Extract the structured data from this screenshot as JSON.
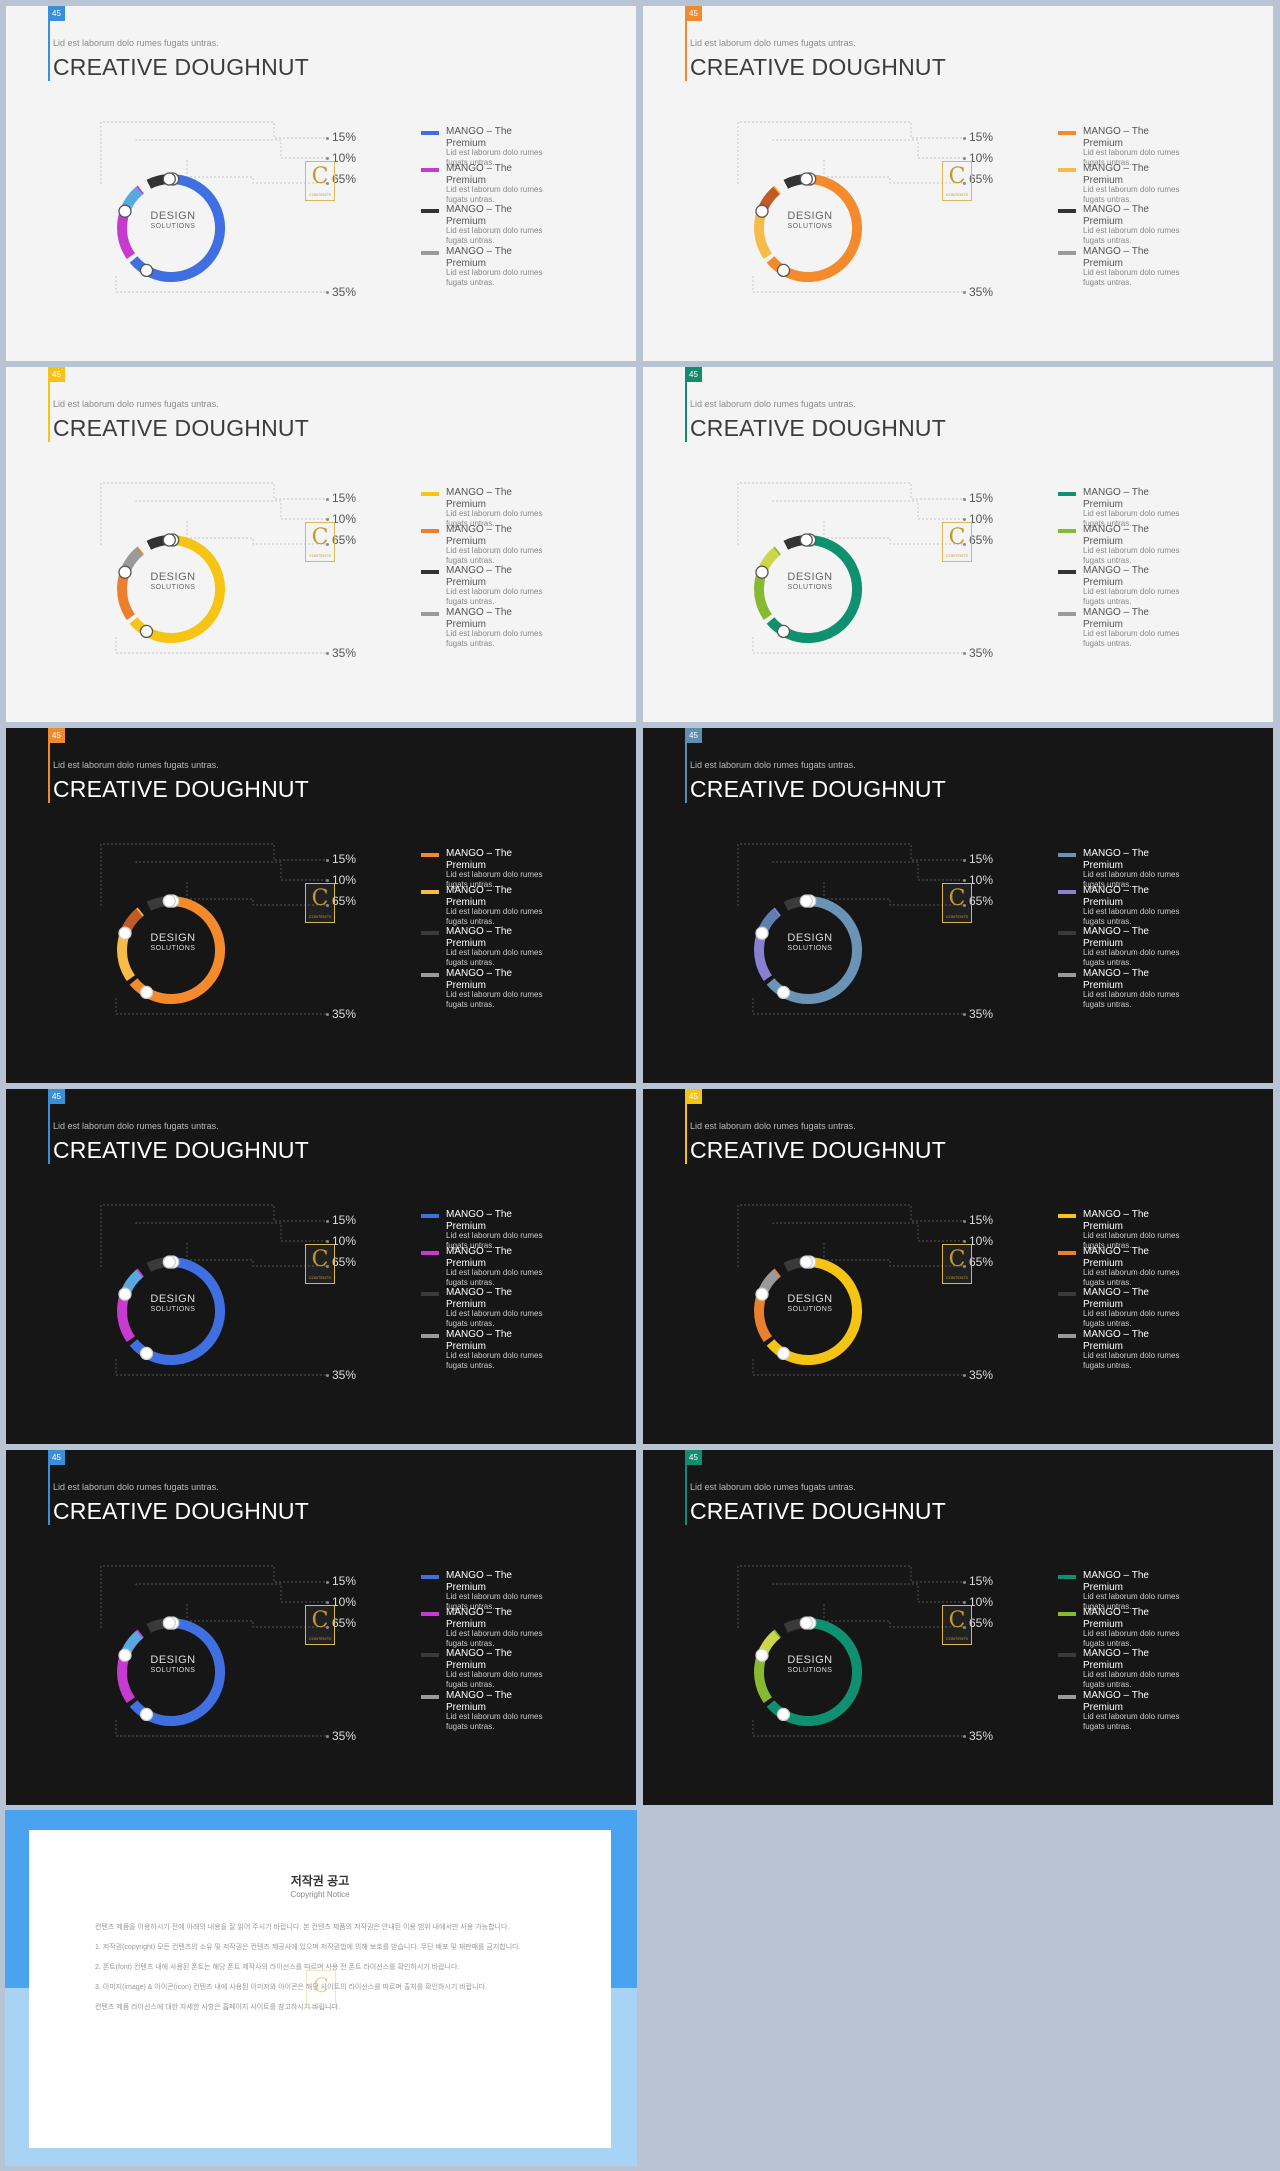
{
  "slides": [
    {
      "number": "45",
      "theme": "light",
      "accent": "#3b8fd9",
      "colors": [
        "#3f6fe0",
        "#c63ad0",
        "#333333",
        "#5aa8e0"
      ],
      "legend_colors": [
        "#3f6fe0",
        "#c63ad0",
        "#333333",
        "#9a9a9a"
      ]
    },
    {
      "number": "45",
      "theme": "light",
      "accent": "#f08a2e",
      "colors": [
        "#f58a2c",
        "#f7bb48",
        "#333333",
        "#c05a26"
      ],
      "legend_colors": [
        "#f58a2c",
        "#f7bb48",
        "#333333",
        "#9a9a9a"
      ]
    },
    {
      "number": "45",
      "theme": "light",
      "accent": "#f3c319",
      "colors": [
        "#f6c414",
        "#ea7f2d",
        "#333333",
        "#9a9a9a"
      ],
      "legend_colors": [
        "#f6c414",
        "#ea7f2d",
        "#333333",
        "#9a9a9a"
      ]
    },
    {
      "number": "45",
      "theme": "light",
      "accent": "#138c6e",
      "colors": [
        "#0f9170",
        "#87b933",
        "#333333",
        "#c9d84a"
      ],
      "legend_colors": [
        "#0f9170",
        "#87b933",
        "#333333",
        "#9a9a9a"
      ]
    },
    {
      "number": "45",
      "theme": "dark",
      "accent": "#f08a2e",
      "colors": [
        "#f58a2c",
        "#f7bb48",
        "#3a3a3a",
        "#c05a26"
      ],
      "legend_colors": [
        "#f58a2c",
        "#f7bb48",
        "#3a3a3a",
        "#9a9a9a"
      ]
    },
    {
      "number": "45",
      "theme": "dark",
      "accent": "#5f8fb0",
      "colors": [
        "#6b93b5",
        "#8a7fd0",
        "#3a3a3a",
        "#5f7fb0"
      ],
      "legend_colors": [
        "#6b93b5",
        "#8a7fd0",
        "#3a3a3a",
        "#9a9a9a"
      ]
    },
    {
      "number": "45",
      "theme": "dark",
      "accent": "#3b8fd9",
      "colors": [
        "#3f6fe0",
        "#c63ad0",
        "#3a3a3a",
        "#5aa8e0"
      ],
      "legend_colors": [
        "#3f6fe0",
        "#c63ad0",
        "#3a3a3a",
        "#9a9a9a"
      ]
    },
    {
      "number": "45",
      "theme": "dark",
      "accent": "#f3c319",
      "colors": [
        "#f6c414",
        "#ea7f2d",
        "#3a3a3a",
        "#9a9a9a"
      ],
      "legend_colors": [
        "#f6c414",
        "#ea7f2d",
        "#3a3a3a",
        "#9a9a9a"
      ]
    },
    {
      "number": "45",
      "theme": "dark",
      "accent": "#3b8fd9",
      "colors": [
        "#3f6fe0",
        "#c63ad0",
        "#3a3a3a",
        "#5aa8e0"
      ],
      "legend_colors": [
        "#3f6fe0",
        "#c63ad0",
        "#3a3a3a",
        "#9a9a9a"
      ]
    },
    {
      "number": "45",
      "theme": "dark",
      "accent": "#138c6e",
      "colors": [
        "#0f9170",
        "#87b933",
        "#3a3a3a",
        "#c9d84a"
      ],
      "legend_colors": [
        "#0f9170",
        "#87b933",
        "#3a3a3a",
        "#9a9a9a"
      ]
    }
  ],
  "common": {
    "subtitle": "Lid est laborum dolo rumes fugats untras.",
    "title": "CREATIVE DOUGHNUT",
    "center_title": "DESIGN",
    "center_sub": "SOLUTIONS",
    "pct_15": "15%",
    "pct_10": "10%",
    "pct_65": "65%",
    "pct_35": "35%",
    "logo": "C",
    "logo_sub": "CONTENTS",
    "legend": [
      {
        "heading": "MANGO – The Premium",
        "text": "Lid est laborum dolo rumes fugats untras."
      },
      {
        "heading": "MANGO – The Premium",
        "text": "Lid est laborum dolo rumes fugats untras."
      },
      {
        "heading": "MANGO – The Premium",
        "text": "Lid est laborum dolo rumes fugats untras."
      },
      {
        "heading": "MANGO – The Premium",
        "text": "Lid est laborum dolo rumes fugats untras."
      }
    ]
  },
  "notice": {
    "title": "저작권 공고",
    "subtitle": "Copyright Notice",
    "watermark": "C",
    "paragraphs": [
      "컨텐츠 제품을 이용하시기 전에 아래의 내용을 잘 읽어 주시기 바랍니다. 본 컨텐츠 제품의 저작권은 안내된 이용 범위 내에서만 사용 가능합니다.",
      "1. 저작권(copyright) 모든 컨텐츠의 소유 및 저작권은 컨텐츠 제공사에 있으며 저작권법에 의해 보호를 받습니다. 무단 배포 및 재판매를 금지합니다.",
      "2. 폰트(font) 컨텐츠 내에 사용된 폰트는 해당 폰트 제작사의 라이선스를 따르며 사용 전 폰트 라이선스를 확인하시기 바랍니다.",
      "3. 이미지(image) & 아이콘(icon) 컨텐츠 내에 사용된 이미지와 아이콘은 해당 사이트의 라이선스를 따르며 출처를 확인하시기 바랍니다.",
      "컨텐츠 제품 라이선스에 대한 자세한 사항은 홈페이지 사이트를 참고하시기 바랍니다."
    ]
  }
}
